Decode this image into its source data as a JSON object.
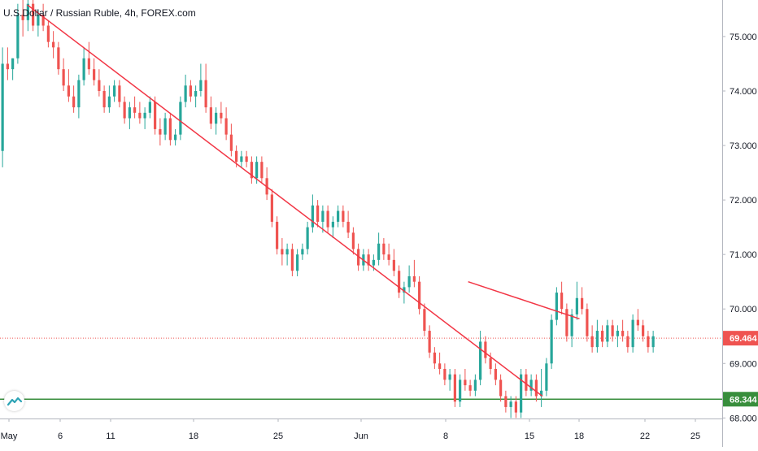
{
  "header": {
    "symbol_title": "U.S.Dollar / Russian Ruble, 4h, FOREX.com"
  },
  "colors": {
    "up": "#26a69a",
    "down": "#ef5350",
    "trendline": "#f23645",
    "support": "#388e3c",
    "last_price": "#ef5350",
    "axis_text": "#131722",
    "grid_border": "#b2b5be"
  },
  "chart_data": {
    "type": "candlestick",
    "title": "U.S.Dollar / Russian Ruble, 4h, FOREX.com",
    "ylim": [
      67.99,
      75.67
    ],
    "y_ticks": [
      "75.000",
      "74.000",
      "73.000",
      "72.000",
      "71.000",
      "70.000",
      "69.000",
      "68.000"
    ],
    "x_ticks": [
      "May",
      "6",
      "11",
      "18",
      "25",
      "Jun",
      "8",
      "15",
      "18",
      "22",
      "25"
    ],
    "last_price_label": "69.464",
    "support_label": "68.344",
    "last_price": 69.464,
    "support_level": 68.344,
    "trendlines": [
      {
        "name": "descending-resistance",
        "from": [
          5.4,
          75.58
        ],
        "to": [
          106.7,
          68.4
        ]
      },
      {
        "name": "upper-channel",
        "from": [
          92.1,
          70.5
        ],
        "to": [
          114.0,
          69.82
        ]
      }
    ],
    "candles": [
      {
        "o": 72.9,
        "h": 74.8,
        "l": 72.6,
        "c": 74.5
      },
      {
        "o": 74.5,
        "h": 74.8,
        "l": 74.2,
        "c": 74.4
      },
      {
        "o": 74.4,
        "h": 74.6,
        "l": 74.2,
        "c": 74.6
      },
      {
        "o": 74.6,
        "h": 75.6,
        "l": 74.5,
        "c": 75.4
      },
      {
        "o": 75.4,
        "h": 75.7,
        "l": 75.0,
        "c": 75.3
      },
      {
        "o": 75.3,
        "h": 75.7,
        "l": 75.1,
        "c": 75.6
      },
      {
        "o": 75.6,
        "h": 75.7,
        "l": 75.1,
        "c": 75.2
      },
      {
        "o": 75.2,
        "h": 75.5,
        "l": 75.0,
        "c": 75.4
      },
      {
        "o": 75.4,
        "h": 75.6,
        "l": 75.1,
        "c": 75.2
      },
      {
        "o": 75.2,
        "h": 75.3,
        "l": 74.8,
        "c": 74.9
      },
      {
        "o": 74.9,
        "h": 75.1,
        "l": 74.6,
        "c": 74.8
      },
      {
        "o": 74.8,
        "h": 74.9,
        "l": 74.3,
        "c": 74.4
      },
      {
        "o": 74.4,
        "h": 74.6,
        "l": 74.0,
        "c": 74.1
      },
      {
        "o": 74.1,
        "h": 74.4,
        "l": 73.8,
        "c": 73.9
      },
      {
        "o": 73.9,
        "h": 74.1,
        "l": 73.6,
        "c": 73.7
      },
      {
        "o": 73.7,
        "h": 74.3,
        "l": 73.5,
        "c": 74.2
      },
      {
        "o": 74.2,
        "h": 74.8,
        "l": 74.1,
        "c": 74.6
      },
      {
        "o": 74.6,
        "h": 74.9,
        "l": 74.3,
        "c": 74.4
      },
      {
        "o": 74.4,
        "h": 74.6,
        "l": 74.1,
        "c": 74.2
      },
      {
        "o": 74.2,
        "h": 74.4,
        "l": 73.9,
        "c": 74.0
      },
      {
        "o": 74.0,
        "h": 74.1,
        "l": 73.6,
        "c": 73.7
      },
      {
        "o": 73.7,
        "h": 74.1,
        "l": 73.6,
        "c": 73.9
      },
      {
        "o": 73.9,
        "h": 74.2,
        "l": 73.8,
        "c": 74.1
      },
      {
        "o": 74.1,
        "h": 74.2,
        "l": 73.7,
        "c": 73.8
      },
      {
        "o": 73.8,
        "h": 73.9,
        "l": 73.4,
        "c": 73.5
      },
      {
        "o": 73.5,
        "h": 73.8,
        "l": 73.3,
        "c": 73.7
      },
      {
        "o": 73.7,
        "h": 73.9,
        "l": 73.5,
        "c": 73.6
      },
      {
        "o": 73.6,
        "h": 73.8,
        "l": 73.4,
        "c": 73.5
      },
      {
        "o": 73.5,
        "h": 73.7,
        "l": 73.3,
        "c": 73.6
      },
      {
        "o": 73.6,
        "h": 73.9,
        "l": 73.5,
        "c": 73.8
      },
      {
        "o": 73.8,
        "h": 73.9,
        "l": 73.2,
        "c": 73.3
      },
      {
        "o": 73.3,
        "h": 73.5,
        "l": 73.0,
        "c": 73.2
      },
      {
        "o": 73.2,
        "h": 73.6,
        "l": 73.1,
        "c": 73.5
      },
      {
        "o": 73.5,
        "h": 73.6,
        "l": 73.0,
        "c": 73.1
      },
      {
        "o": 73.1,
        "h": 73.3,
        "l": 73.0,
        "c": 73.2
      },
      {
        "o": 73.2,
        "h": 73.9,
        "l": 73.1,
        "c": 73.8
      },
      {
        "o": 73.8,
        "h": 74.3,
        "l": 73.7,
        "c": 74.1
      },
      {
        "o": 74.1,
        "h": 74.2,
        "l": 73.8,
        "c": 73.9
      },
      {
        "o": 73.9,
        "h": 74.1,
        "l": 73.7,
        "c": 74.0
      },
      {
        "o": 74.0,
        "h": 74.5,
        "l": 73.9,
        "c": 74.2
      },
      {
        "o": 74.2,
        "h": 74.5,
        "l": 73.6,
        "c": 73.7
      },
      {
        "o": 73.7,
        "h": 73.9,
        "l": 73.3,
        "c": 73.4
      },
      {
        "o": 73.4,
        "h": 73.7,
        "l": 73.2,
        "c": 73.6
      },
      {
        "o": 73.6,
        "h": 73.8,
        "l": 73.4,
        "c": 73.5
      },
      {
        "o": 73.5,
        "h": 73.7,
        "l": 73.1,
        "c": 73.2
      },
      {
        "o": 73.2,
        "h": 73.4,
        "l": 72.8,
        "c": 72.9
      },
      {
        "o": 72.9,
        "h": 73.0,
        "l": 72.6,
        "c": 72.7
      },
      {
        "o": 72.7,
        "h": 72.9,
        "l": 72.6,
        "c": 72.8
      },
      {
        "o": 72.8,
        "h": 72.9,
        "l": 72.6,
        "c": 72.7
      },
      {
        "o": 72.7,
        "h": 72.8,
        "l": 72.3,
        "c": 72.4
      },
      {
        "o": 72.4,
        "h": 72.8,
        "l": 72.3,
        "c": 72.7
      },
      {
        "o": 72.7,
        "h": 72.8,
        "l": 72.3,
        "c": 72.4
      },
      {
        "o": 72.4,
        "h": 72.6,
        "l": 72.0,
        "c": 72.1
      },
      {
        "o": 72.1,
        "h": 72.2,
        "l": 71.5,
        "c": 71.6
      },
      {
        "o": 71.6,
        "h": 71.7,
        "l": 71.0,
        "c": 71.1
      },
      {
        "o": 71.1,
        "h": 71.3,
        "l": 70.8,
        "c": 71.0
      },
      {
        "o": 71.0,
        "h": 71.2,
        "l": 70.8,
        "c": 71.1
      },
      {
        "o": 71.1,
        "h": 71.2,
        "l": 70.6,
        "c": 70.7
      },
      {
        "o": 70.7,
        "h": 71.1,
        "l": 70.6,
        "c": 71.0
      },
      {
        "o": 71.0,
        "h": 71.2,
        "l": 70.9,
        "c": 71.1
      },
      {
        "o": 71.1,
        "h": 71.6,
        "l": 71.0,
        "c": 71.5
      },
      {
        "o": 71.5,
        "h": 72.1,
        "l": 71.4,
        "c": 71.9
      },
      {
        "o": 71.9,
        "h": 72.0,
        "l": 71.5,
        "c": 71.6
      },
      {
        "o": 71.6,
        "h": 71.9,
        "l": 71.4,
        "c": 71.8
      },
      {
        "o": 71.8,
        "h": 71.9,
        "l": 71.4,
        "c": 71.5
      },
      {
        "o": 71.5,
        "h": 71.7,
        "l": 71.3,
        "c": 71.6
      },
      {
        "o": 71.6,
        "h": 71.9,
        "l": 71.5,
        "c": 71.8
      },
      {
        "o": 71.8,
        "h": 71.9,
        "l": 71.5,
        "c": 71.6
      },
      {
        "o": 71.6,
        "h": 71.8,
        "l": 71.3,
        "c": 71.4
      },
      {
        "o": 71.4,
        "h": 71.5,
        "l": 71.0,
        "c": 71.1
      },
      {
        "o": 71.1,
        "h": 71.2,
        "l": 70.7,
        "c": 70.8
      },
      {
        "o": 70.8,
        "h": 71.1,
        "l": 70.7,
        "c": 71.0
      },
      {
        "o": 71.0,
        "h": 71.1,
        "l": 70.7,
        "c": 70.8
      },
      {
        "o": 70.8,
        "h": 71.0,
        "l": 70.7,
        "c": 70.9
      },
      {
        "o": 70.9,
        "h": 71.4,
        "l": 70.8,
        "c": 71.2
      },
      {
        "o": 71.2,
        "h": 71.3,
        "l": 70.9,
        "c": 71.0
      },
      {
        "o": 71.0,
        "h": 71.2,
        "l": 70.8,
        "c": 70.9
      },
      {
        "o": 70.9,
        "h": 71.1,
        "l": 70.6,
        "c": 70.7
      },
      {
        "o": 70.7,
        "h": 70.8,
        "l": 70.2,
        "c": 70.3
      },
      {
        "o": 70.3,
        "h": 70.5,
        "l": 70.1,
        "c": 70.4
      },
      {
        "o": 70.4,
        "h": 70.8,
        "l": 70.3,
        "c": 70.6
      },
      {
        "o": 70.6,
        "h": 70.9,
        "l": 70.4,
        "c": 70.5
      },
      {
        "o": 70.5,
        "h": 70.6,
        "l": 69.9,
        "c": 70.0
      },
      {
        "o": 70.0,
        "h": 70.1,
        "l": 69.5,
        "c": 69.6
      },
      {
        "o": 69.6,
        "h": 69.7,
        "l": 69.1,
        "c": 69.2
      },
      {
        "o": 69.2,
        "h": 69.3,
        "l": 68.9,
        "c": 69.0
      },
      {
        "o": 69.0,
        "h": 69.2,
        "l": 68.8,
        "c": 68.9
      },
      {
        "o": 68.9,
        "h": 69.0,
        "l": 68.6,
        "c": 68.7
      },
      {
        "o": 68.7,
        "h": 68.9,
        "l": 68.5,
        "c": 68.8
      },
      {
        "o": 68.8,
        "h": 68.9,
        "l": 68.2,
        "c": 68.3
      },
      {
        "o": 68.3,
        "h": 68.8,
        "l": 68.2,
        "c": 68.7
      },
      {
        "o": 68.7,
        "h": 68.9,
        "l": 68.5,
        "c": 68.6
      },
      {
        "o": 68.6,
        "h": 68.7,
        "l": 68.4,
        "c": 68.5
      },
      {
        "o": 68.5,
        "h": 68.8,
        "l": 68.4,
        "c": 68.7
      },
      {
        "o": 68.7,
        "h": 69.6,
        "l": 68.6,
        "c": 69.4
      },
      {
        "o": 69.4,
        "h": 69.5,
        "l": 69.0,
        "c": 69.1
      },
      {
        "o": 69.1,
        "h": 69.2,
        "l": 68.8,
        "c": 68.9
      },
      {
        "o": 68.9,
        "h": 69.0,
        "l": 68.6,
        "c": 68.7
      },
      {
        "o": 68.7,
        "h": 68.8,
        "l": 68.3,
        "c": 68.4
      },
      {
        "o": 68.4,
        "h": 68.5,
        "l": 68.1,
        "c": 68.2
      },
      {
        "o": 68.2,
        "h": 68.4,
        "l": 68.0,
        "c": 68.3
      },
      {
        "o": 68.3,
        "h": 68.4,
        "l": 68.0,
        "c": 68.1
      },
      {
        "o": 68.1,
        "h": 68.9,
        "l": 68.0,
        "c": 68.8
      },
      {
        "o": 68.8,
        "h": 68.9,
        "l": 68.4,
        "c": 68.5
      },
      {
        "o": 68.5,
        "h": 68.8,
        "l": 68.4,
        "c": 68.7
      },
      {
        "o": 68.7,
        "h": 68.8,
        "l": 68.3,
        "c": 68.4
      },
      {
        "o": 68.4,
        "h": 68.9,
        "l": 68.2,
        "c": 68.5
      },
      {
        "o": 68.5,
        "h": 69.1,
        "l": 68.4,
        "c": 69.0
      },
      {
        "o": 69.0,
        "h": 69.9,
        "l": 68.9,
        "c": 69.8
      },
      {
        "o": 69.8,
        "h": 70.4,
        "l": 69.7,
        "c": 70.3
      },
      {
        "o": 70.3,
        "h": 70.5,
        "l": 69.9,
        "c": 70.0
      },
      {
        "o": 70.0,
        "h": 70.1,
        "l": 69.4,
        "c": 69.5
      },
      {
        "o": 69.5,
        "h": 70.0,
        "l": 69.3,
        "c": 69.9
      },
      {
        "o": 69.9,
        "h": 70.5,
        "l": 69.8,
        "c": 70.2
      },
      {
        "o": 70.2,
        "h": 70.4,
        "l": 69.9,
        "c": 70.0
      },
      {
        "o": 70.0,
        "h": 70.1,
        "l": 69.4,
        "c": 69.5
      },
      {
        "o": 69.5,
        "h": 69.7,
        "l": 69.2,
        "c": 69.3
      },
      {
        "o": 69.3,
        "h": 69.8,
        "l": 69.2,
        "c": 69.6
      },
      {
        "o": 69.6,
        "h": 69.7,
        "l": 69.3,
        "c": 69.4
      },
      {
        "o": 69.4,
        "h": 69.8,
        "l": 69.3,
        "c": 69.7
      },
      {
        "o": 69.7,
        "h": 69.8,
        "l": 69.4,
        "c": 69.5
      },
      {
        "o": 69.5,
        "h": 69.7,
        "l": 69.3,
        "c": 69.6
      },
      {
        "o": 69.6,
        "h": 69.8,
        "l": 69.4,
        "c": 69.5
      },
      {
        "o": 69.5,
        "h": 69.6,
        "l": 69.2,
        "c": 69.3
      },
      {
        "o": 69.3,
        "h": 69.9,
        "l": 69.2,
        "c": 69.8
      },
      {
        "o": 69.8,
        "h": 70.0,
        "l": 69.6,
        "c": 69.7
      },
      {
        "o": 69.7,
        "h": 69.8,
        "l": 69.4,
        "c": 69.5
      },
      {
        "o": 69.5,
        "h": 69.6,
        "l": 69.2,
        "c": 69.3
      },
      {
        "o": 69.3,
        "h": 69.6,
        "l": 69.2,
        "c": 69.5
      }
    ]
  }
}
